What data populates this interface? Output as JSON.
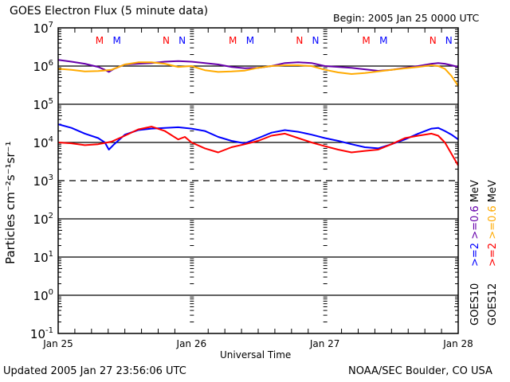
{
  "chart_data": {
    "type": "line",
    "title": "GOES Electron Flux (5 minute data)",
    "subtitle": "Begin: 2005 Jan 25 0000 UTC",
    "xlabel": "Universal Time",
    "ylabel": "Particles cm⁻²s⁻¹sr⁻¹",
    "yscale": "log",
    "ylim": [
      0.1,
      10000000
    ],
    "xlim_days": [
      0,
      3
    ],
    "grid": "horizontal lines at 1e6, 1e5, 1e4, 1e2, 1e1, 1e0; dashed at 1e3",
    "y_ticks": [
      {
        "base": "10",
        "exp": "7",
        "value": 10000000
      },
      {
        "base": "10",
        "exp": "6",
        "value": 1000000
      },
      {
        "base": "10",
        "exp": "5",
        "value": 100000
      },
      {
        "base": "10",
        "exp": "4",
        "value": 10000
      },
      {
        "base": "10",
        "exp": "3",
        "value": 1000
      },
      {
        "base": "10",
        "exp": "2",
        "value": 100
      },
      {
        "base": "10",
        "exp": "1",
        "value": 10
      },
      {
        "base": "10",
        "exp": "0",
        "value": 1
      },
      {
        "base": "10",
        "exp": "-1",
        "value": 0.1
      }
    ],
    "x_ticks": [
      {
        "label": "Jan 25",
        "day": 0
      },
      {
        "label": "Jan 26",
        "day": 1
      },
      {
        "label": "Jan 27",
        "day": 2
      },
      {
        "label": "Jan 28",
        "day": 3
      }
    ],
    "markers": [
      {
        "label": "M",
        "day": 0.31,
        "color": "#ff0000"
      },
      {
        "label": "M",
        "day": 0.44,
        "color": "#0000ff"
      },
      {
        "label": "N",
        "day": 0.81,
        "color": "#ff0000"
      },
      {
        "label": "N",
        "day": 0.93,
        "color": "#0000ff"
      },
      {
        "label": "M",
        "day": 1.31,
        "color": "#ff0000"
      },
      {
        "label": "M",
        "day": 1.44,
        "color": "#0000ff"
      },
      {
        "label": "N",
        "day": 1.81,
        "color": "#ff0000"
      },
      {
        "label": "N",
        "day": 1.93,
        "color": "#0000ff"
      },
      {
        "label": "M",
        "day": 2.31,
        "color": "#ff0000"
      },
      {
        "label": "M",
        "day": 2.44,
        "color": "#0000ff"
      },
      {
        "label": "N",
        "day": 2.81,
        "color": "#ff0000"
      },
      {
        "label": "N",
        "day": 2.93,
        "color": "#0000ff"
      }
    ],
    "legend": {
      "placement": "right (vertical text)",
      "groups": [
        {
          "satellite": "GOES10",
          "entries": [
            {
              "label": ">=2",
              "color": "#0000ff"
            },
            {
              "label": ">=0.6",
              "color": "#6600aa"
            },
            {
              "label": "MeV",
              "color": "#000000"
            }
          ]
        },
        {
          "satellite": "GOES12",
          "entries": [
            {
              "label": ">=2",
              "color": "#ff0000"
            },
            {
              "label": ">=0.6",
              "color": "#ffaa00"
            },
            {
              "label": "MeV",
              "color": "#000000"
            }
          ]
        }
      ]
    },
    "series": [
      {
        "name": "GOES10 >=0.6 MeV",
        "color": "#6600aa",
        "x": [
          0,
          0.1,
          0.2,
          0.3,
          0.35,
          0.38,
          0.42,
          0.5,
          0.6,
          0.7,
          0.8,
          0.9,
          1.0,
          1.1,
          1.2,
          1.3,
          1.4,
          1.5,
          1.6,
          1.7,
          1.8,
          1.9,
          2.0,
          2.1,
          2.2,
          2.3,
          2.4,
          2.5,
          2.6,
          2.7,
          2.8,
          2.85,
          2.9,
          2.95,
          3.0
        ],
        "y": [
          1450000,
          1300000,
          1150000,
          950000,
          800000,
          700000,
          850000,
          1100000,
          1150000,
          1200000,
          1300000,
          1350000,
          1300000,
          1200000,
          1100000,
          950000,
          880000,
          900000,
          1000000,
          1200000,
          1250000,
          1200000,
          1000000,
          950000,
          900000,
          820000,
          750000,
          800000,
          900000,
          1000000,
          1150000,
          1200000,
          1150000,
          1050000,
          950000
        ]
      },
      {
        "name": "GOES12 >=0.6 MeV",
        "color": "#ffaa00",
        "x": [
          0,
          0.1,
          0.2,
          0.3,
          0.4,
          0.5,
          0.6,
          0.7,
          0.8,
          0.9,
          1.0,
          1.1,
          1.2,
          1.3,
          1.4,
          1.5,
          1.6,
          1.7,
          1.8,
          1.9,
          2.0,
          2.1,
          2.2,
          2.3,
          2.4,
          2.5,
          2.6,
          2.7,
          2.8,
          2.85,
          2.9,
          2.95,
          3.0
        ],
        "y": [
          850000,
          800000,
          720000,
          740000,
          800000,
          1100000,
          1250000,
          1250000,
          1150000,
          950000,
          1000000,
          780000,
          700000,
          720000,
          760000,
          900000,
          1000000,
          1050000,
          1050000,
          1000000,
          800000,
          680000,
          620000,
          660000,
          720000,
          800000,
          870000,
          950000,
          1050000,
          1000000,
          850000,
          550000,
          300000
        ]
      },
      {
        "name": "GOES10 >=2 MeV",
        "color": "#0000ff",
        "x": [
          0,
          0.1,
          0.2,
          0.3,
          0.35,
          0.38,
          0.42,
          0.5,
          0.6,
          0.7,
          0.8,
          0.9,
          1.0,
          1.1,
          1.2,
          1.3,
          1.4,
          1.5,
          1.6,
          1.7,
          1.8,
          1.9,
          2.0,
          2.1,
          2.2,
          2.3,
          2.4,
          2.5,
          2.6,
          2.7,
          2.8,
          2.85,
          2.9,
          2.95,
          3.0
        ],
        "y": [
          30000,
          24000,
          17000,
          13000,
          10000,
          6500,
          9000,
          16000,
          21000,
          23000,
          24000,
          25000,
          23000,
          20000,
          14000,
          11000,
          9500,
          13000,
          18000,
          21000,
          19000,
          16000,
          13000,
          11000,
          9000,
          7500,
          7000,
          9000,
          12000,
          17000,
          23000,
          24000,
          20000,
          16000,
          12000
        ]
      },
      {
        "name": "GOES12 >=2 MeV",
        "color": "#ff0000",
        "x": [
          0,
          0.1,
          0.2,
          0.3,
          0.4,
          0.5,
          0.6,
          0.7,
          0.8,
          0.9,
          0.95,
          1.0,
          1.1,
          1.2,
          1.3,
          1.4,
          1.5,
          1.6,
          1.7,
          1.8,
          1.9,
          2.0,
          2.1,
          2.2,
          2.3,
          2.4,
          2.5,
          2.6,
          2.7,
          2.8,
          2.85,
          2.9,
          2.95,
          3.0
        ],
        "y": [
          10000,
          9500,
          8500,
          9000,
          10500,
          15000,
          22000,
          26000,
          20000,
          12000,
          14000,
          10000,
          7000,
          5500,
          7500,
          9000,
          11000,
          15000,
          17000,
          13000,
          10000,
          8000,
          6500,
          5500,
          6000,
          6500,
          9000,
          13000,
          15000,
          17000,
          15000,
          10000,
          5000,
          2500
        ]
      }
    ]
  },
  "footer": {
    "updated": "Updated 2005 Jan 27 23:56:06 UTC",
    "credit": "NOAA/SEC Boulder, CO USA"
  }
}
